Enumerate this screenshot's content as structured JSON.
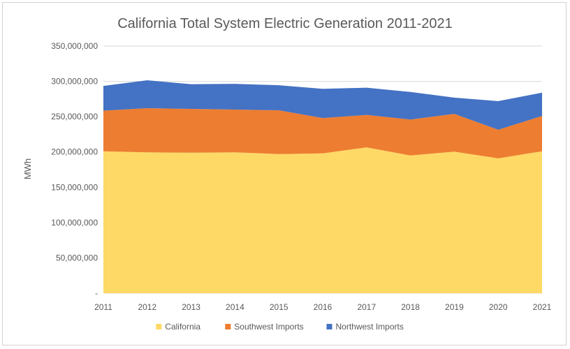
{
  "chart_data": {
    "type": "area",
    "stacked": true,
    "title": "California Total System Electric Generation 2011-2021",
    "xlabel": "",
    "ylabel": "MWh",
    "categories": [
      "2011",
      "2012",
      "2013",
      "2014",
      "2015",
      "2016",
      "2017",
      "2018",
      "2019",
      "2020",
      "2021"
    ],
    "ylim": [
      0,
      350000000
    ],
    "yticks": [
      0,
      50000000,
      100000000,
      150000000,
      200000000,
      250000000,
      300000000,
      350000000
    ],
    "ytick_labels": [
      "-",
      "50,000,000",
      "100,000,000",
      "150,000,000",
      "200,000,000",
      "250,000,000",
      "300,000,000",
      "350,000,000"
    ],
    "grid": true,
    "legend_position": "bottom",
    "series": [
      {
        "name": "California",
        "color": "#FFD966",
        "values": [
          201000000,
          199500000,
          199000000,
          199500000,
          197000000,
          198000000,
          206500000,
          195000000,
          200500000,
          191000000,
          201000000
        ]
      },
      {
        "name": "Southwest Imports",
        "color": "#ED7D31",
        "values": [
          57500000,
          62500000,
          62000000,
          60500000,
          62000000,
          50000000,
          46000000,
          51000000,
          53500000,
          40500000,
          50000000
        ]
      },
      {
        "name": "Northwest Imports",
        "color": "#4472C4",
        "values": [
          35000000,
          39500000,
          35000000,
          36500000,
          35500000,
          41500000,
          38500000,
          39000000,
          23000000,
          40500000,
          33000000
        ]
      }
    ]
  }
}
